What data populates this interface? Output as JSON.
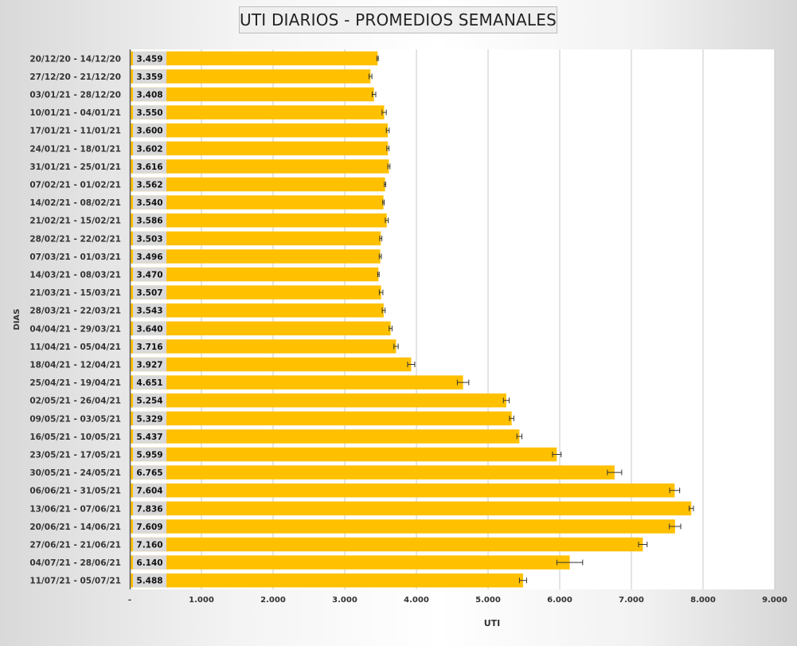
{
  "chart_data": {
    "type": "bar",
    "orientation": "horizontal",
    "title": "UTI DIARIOS - PROMEDIOS SEMANALES",
    "xlabel": "UTI",
    "ylabel": "DIAS",
    "xlim": [
      0,
      9000
    ],
    "x_ticks": [
      0,
      1000,
      2000,
      3000,
      4000,
      5000,
      6000,
      7000,
      8000,
      9000
    ],
    "x_tick_labels": [
      "-",
      "1.000",
      "2.000",
      "3.000",
      "4.000",
      "5.000",
      "6.000",
      "7.000",
      "8.000",
      "9.000"
    ],
    "grid": true,
    "bar_color": "#FFC000",
    "categories": [
      "20/12/20 - 14/12/20",
      "27/12/20 - 21/12/20",
      "03/01/21 - 28/12/20",
      "10/01/21 - 04/01/21",
      "17/01/21 - 11/01/21",
      "24/01/21 - 18/01/21",
      "31/01/21 - 25/01/21",
      "07/02/21 - 01/02/21",
      "14/02/21 - 08/02/21",
      "21/02/21 - 15/02/21",
      "28/02/21 - 22/02/21",
      "07/03/21 - 01/03/21",
      "14/03/21 - 08/03/21",
      "21/03/21 - 15/03/21",
      "28/03/21 - 22/03/21",
      "04/04/21 - 29/03/21",
      "11/04/21 - 05/04/21",
      "18/04/21 - 12/04/21",
      "25/04/21 - 19/04/21",
      "02/05/21 - 26/04/21",
      "09/05/21 - 03/05/21",
      "16/05/21 - 10/05/21",
      "23/05/21 - 17/05/21",
      "30/05/21 - 24/05/21",
      "06/06/21 - 31/05/21",
      "13/06/21 - 07/06/21",
      "20/06/21 - 14/06/21",
      "27/06/21 - 21/06/21",
      "04/07/21 - 28/06/21",
      "11/07/21 - 05/07/21"
    ],
    "values": [
      3459,
      3359,
      3408,
      3550,
      3600,
      3602,
      3616,
      3562,
      3540,
      3586,
      3503,
      3496,
      3470,
      3507,
      3543,
      3640,
      3716,
      3927,
      4651,
      5254,
      5329,
      5437,
      5959,
      6765,
      7604,
      7836,
      7609,
      7160,
      6140,
      5488
    ],
    "value_labels": [
      "3.459",
      "3.359",
      "3.408",
      "3.550",
      "3.600",
      "3.602",
      "3.616",
      "3.562",
      "3.540",
      "3.586",
      "3.503",
      "3.496",
      "3.470",
      "3.507",
      "3.543",
      "3.640",
      "3.716",
      "3.927",
      "4.651",
      "5.254",
      "5.329",
      "5.437",
      "5.959",
      "6.765",
      "7.604",
      "7.836",
      "7.609",
      "7.160",
      "6.140",
      "5.488"
    ],
    "error": [
      10,
      20,
      25,
      30,
      20,
      15,
      15,
      10,
      10,
      20,
      15,
      15,
      10,
      25,
      20,
      20,
      30,
      50,
      80,
      40,
      30,
      35,
      60,
      100,
      70,
      30,
      80,
      60,
      180,
      50
    ]
  }
}
